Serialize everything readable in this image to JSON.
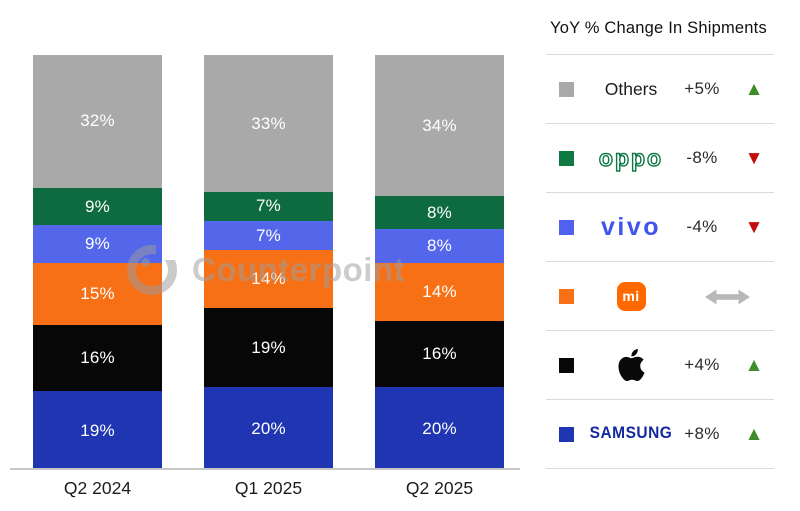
{
  "chart_data": {
    "type": "bar",
    "subtype": "stacked-100",
    "categories": [
      "Q2 2024",
      "Q1 2025",
      "Q2 2025"
    ],
    "series": [
      {
        "name": "Samsung",
        "color": "#1f35b2",
        "values": [
          19,
          20,
          20
        ]
      },
      {
        "name": "Apple",
        "color": "#070707",
        "values": [
          16,
          19,
          16
        ]
      },
      {
        "name": "Xiaomi",
        "color": "#f87016",
        "values": [
          15,
          14,
          14
        ]
      },
      {
        "name": "vivo",
        "color": "#5467eb",
        "values": [
          9,
          7,
          8
        ]
      },
      {
        "name": "OPPO",
        "color": "#0d6b3f",
        "values": [
          9,
          7,
          8
        ]
      },
      {
        "name": "Others",
        "color": "#a9a9a9",
        "values": [
          32,
          33,
          34
        ]
      }
    ],
    "unit": "%",
    "ylim": [
      0,
      100
    ],
    "grid": false,
    "value_labels": "inside-white",
    "legend_position": "right"
  },
  "legend": {
    "title": "YoY % Change In Shipments",
    "rows": [
      {
        "name": "Others",
        "logo_type": "plain",
        "label": "Others",
        "swatch": "#a9a9a9",
        "change": "+5%",
        "direction": "up"
      },
      {
        "name": "OPPO",
        "logo_type": "oppo",
        "label": "oppo",
        "swatch": "#0e7a42",
        "change": "-8%",
        "direction": "down"
      },
      {
        "name": "vivo",
        "logo_type": "vivo",
        "label": "vivo",
        "swatch": "#4f61ee",
        "change": "-4%",
        "direction": "down"
      },
      {
        "name": "Xiaomi",
        "logo_type": "mi",
        "label": "mi",
        "swatch": "#f87016",
        "change": "",
        "direction": "flat"
      },
      {
        "name": "Apple",
        "logo_type": "apple",
        "label": "",
        "swatch": "#070707",
        "change": "+4%",
        "direction": "up"
      },
      {
        "name": "Samsung",
        "logo_type": "samsung",
        "label": "SAMSUNG",
        "swatch": "#1f35b2",
        "change": "+8%",
        "direction": "up"
      }
    ]
  },
  "watermark": {
    "text": "Counterpoint"
  },
  "colors": {
    "up_triangle": "#3f8c2a",
    "down_triangle": "#c20d0c",
    "flat_arrow": "#b8b8b8",
    "axis_line": "#c7c7c7",
    "divider": "#dadada",
    "mi_badge": "#ff6900",
    "samsung_wordmark": "#1428a0",
    "oppo_wordmark": "#0e7a42",
    "vivo_wordmark": "#4155ee"
  },
  "icons": {
    "up": "▲",
    "down": "▼"
  }
}
